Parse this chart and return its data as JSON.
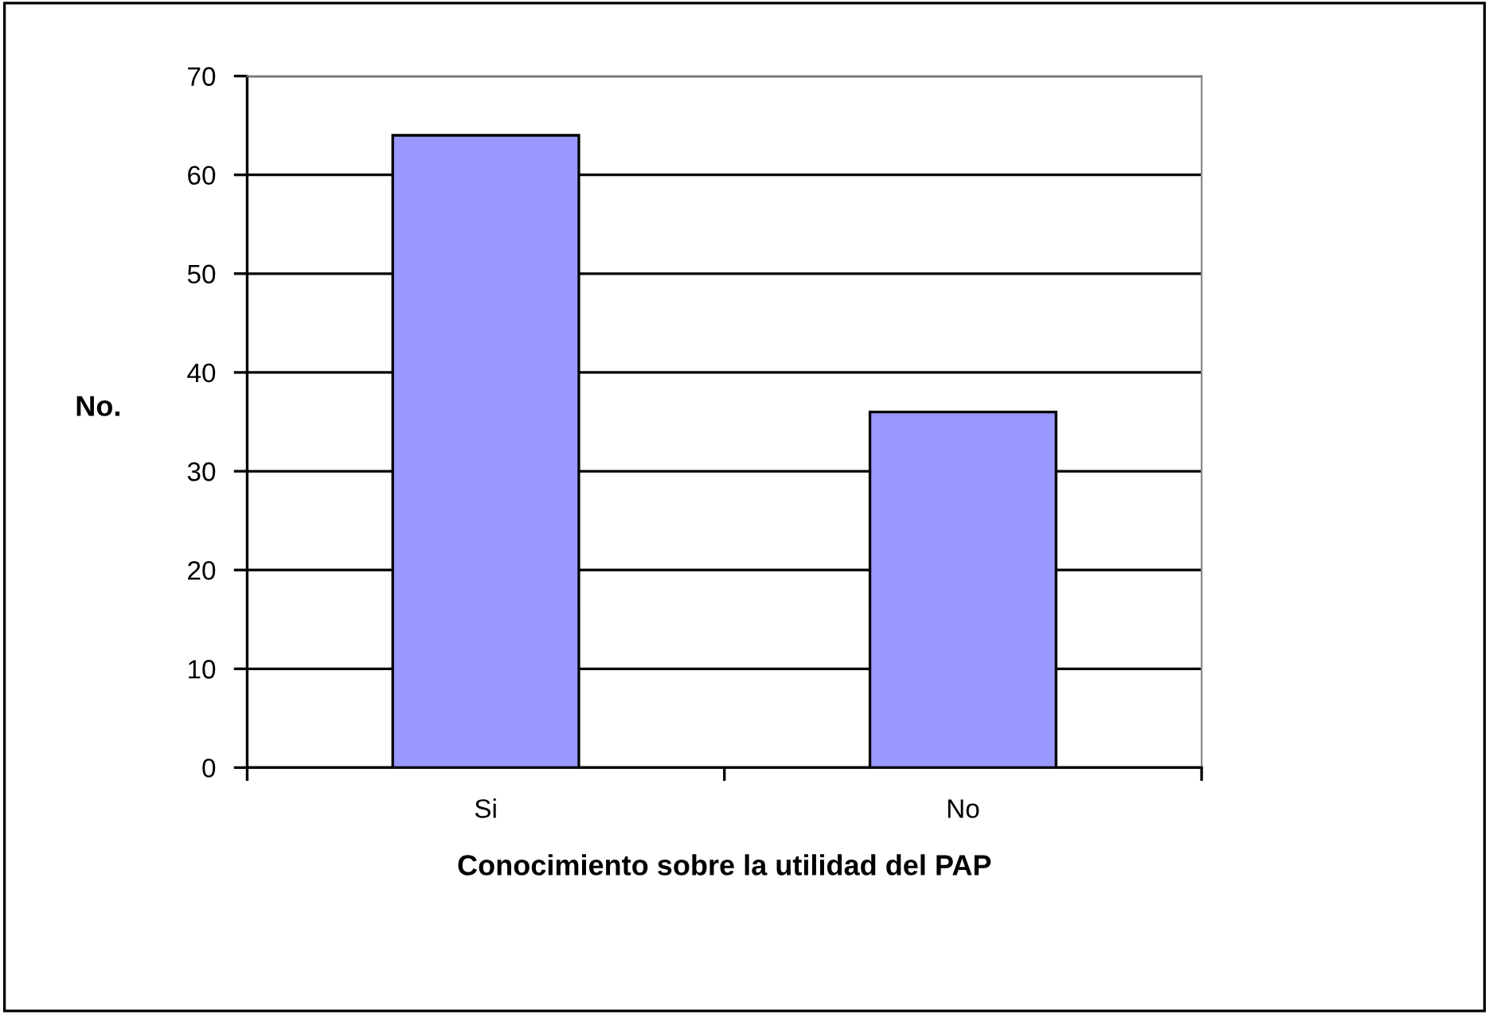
{
  "chart_data": {
    "type": "bar",
    "categories": [
      "Si",
      "No"
    ],
    "values": [
      64,
      36
    ],
    "color": "#9999ff",
    "xlabel": "Conocimiento sobre la utilidad del PAP",
    "ylabel": "No.",
    "ylim": [
      0,
      70
    ],
    "yticks": [
      0,
      10,
      20,
      30,
      40,
      50,
      60,
      70
    ],
    "grid": "y"
  }
}
